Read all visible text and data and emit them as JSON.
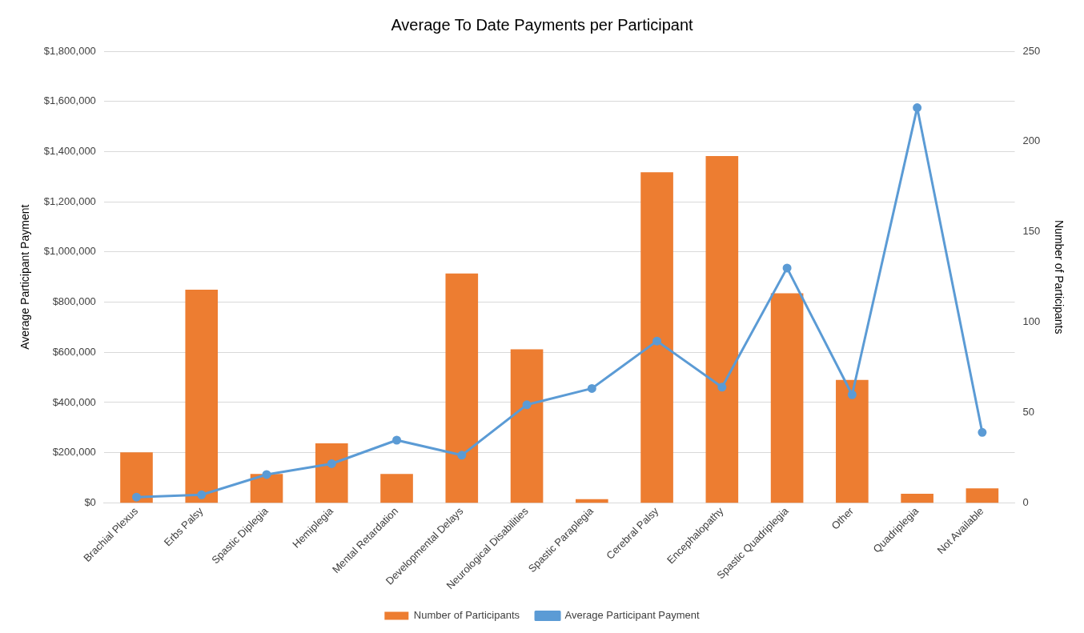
{
  "chart_data": {
    "type": "bar",
    "title": "Average To Date Payments per Participant",
    "ylabel": "Average Participant Payment",
    "y2label": "Number of Participants",
    "categories": [
      "Brachial Plexus",
      "Erbs Palsy",
      "Spastic Diplegia",
      "Hemiplegia",
      "Mental Retardation",
      "Developmental Delays",
      "Neurological Disabilities",
      "Spastic Paraplegia",
      "Cerebral Palsy",
      "Encephalopathy",
      "Spastic Quadriplegia",
      "Other",
      "Quadriplegia",
      "Not Available"
    ],
    "series": [
      {
        "name": "Number of Participants",
        "axis": "y2",
        "color": "#ed7d31",
        "values": [
          28,
          118,
          16,
          33,
          16,
          127,
          85,
          2,
          183,
          192,
          116,
          68,
          5,
          8
        ]
      },
      {
        "name": "Average Participant Payment",
        "type": "line",
        "color": "#5b9bd5",
        "marker": "circle",
        "values": [
          23000,
          32000,
          113000,
          156000,
          250000,
          190000,
          391000,
          456000,
          645000,
          461000,
          936000,
          431000,
          1575000,
          281000
        ]
      }
    ],
    "ylim": [
      0,
      1800000
    ],
    "yticks": [
      {
        "value": 0,
        "label": "$0"
      },
      {
        "value": 200000,
        "label": "$200,000"
      },
      {
        "value": 400000,
        "label": "$400,000"
      },
      {
        "value": 600000,
        "label": "$600,000"
      },
      {
        "value": 800000,
        "label": "$800,000"
      },
      {
        "value": 1000000,
        "label": "$1,000,000"
      },
      {
        "value": 1200000,
        "label": "$1,200,000"
      },
      {
        "value": 1400000,
        "label": "$1,400,000"
      },
      {
        "value": 1600000,
        "label": "$1,600,000"
      },
      {
        "value": 1800000,
        "label": "$1,800,000"
      }
    ],
    "y2lim": [
      0,
      250
    ],
    "y2ticks": [
      0,
      50,
      100,
      150,
      200,
      250
    ],
    "grid": "y",
    "legend": "bottom"
  }
}
